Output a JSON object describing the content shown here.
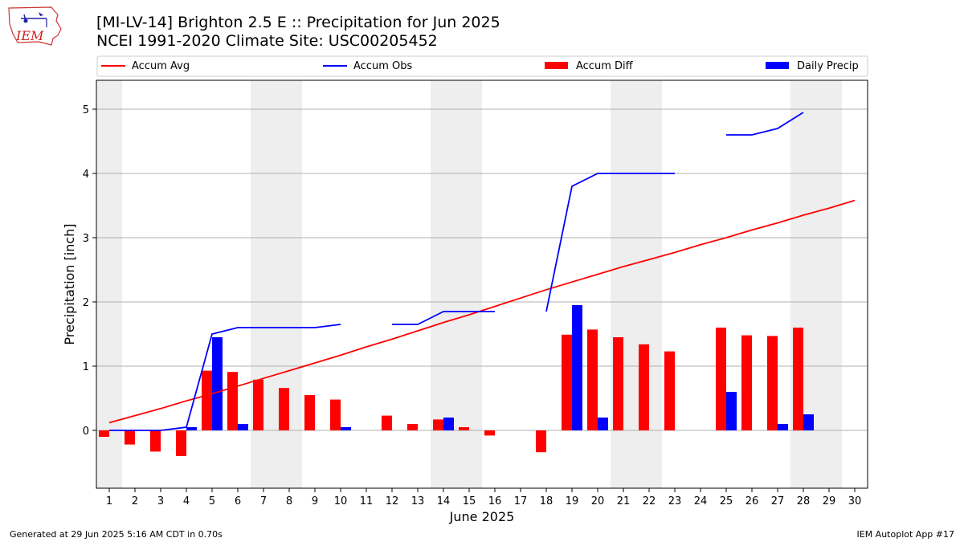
{
  "header": {
    "title": "[MI-LV-14] Brighton 2.5 E :: Precipitation for Jun 2025",
    "subtitle": "NCEI 1991-2020 Climate Site: USC00205452",
    "logo_text": "IEM"
  },
  "footer": {
    "generated": "Generated at 29 Jun 2025 5:16 AM CDT in 0.70s",
    "app": "IEM Autoplot App #17"
  },
  "colors": {
    "avg": "#ff0000",
    "obs": "#0000ff",
    "diff": "#ff0000",
    "daily": "#0000ff",
    "weekend_shade": "#eeeeee",
    "grid": "#b0b0b0"
  },
  "chart_data": {
    "type": "bar",
    "xlabel": "June 2025",
    "ylabel": "Precipitation [inch]",
    "ylim": [
      -0.9,
      5.45
    ],
    "yticks": [
      0,
      1,
      2,
      3,
      4,
      5
    ],
    "grid": true,
    "legend_placement": "top",
    "legend": [
      "Accum Avg",
      "Accum Obs",
      "Accum Diff",
      "Daily Precip"
    ],
    "days": [
      1,
      2,
      3,
      4,
      5,
      6,
      7,
      8,
      9,
      10,
      11,
      12,
      13,
      14,
      15,
      16,
      17,
      18,
      19,
      20,
      21,
      22,
      23,
      24,
      25,
      26,
      27,
      28,
      29,
      30
    ],
    "weekend_days": [
      1,
      7,
      8,
      14,
      15,
      21,
      22,
      28,
      29
    ],
    "series": [
      {
        "name": "Accum Avg",
        "kind": "line",
        "values": [
          0.12,
          0.23,
          0.34,
          0.46,
          0.57,
          0.69,
          0.81,
          0.93,
          1.05,
          1.17,
          1.3,
          1.42,
          1.55,
          1.68,
          1.8,
          1.93,
          2.06,
          2.19,
          2.31,
          2.43,
          2.55,
          2.66,
          2.77,
          2.89,
          3.0,
          3.12,
          3.23,
          3.35,
          3.46,
          3.58
        ]
      },
      {
        "name": "Accum Obs",
        "kind": "line",
        "values": [
          0.0,
          0.0,
          0.0,
          0.05,
          1.5,
          1.6,
          1.6,
          1.6,
          1.6,
          1.65,
          null,
          1.65,
          1.65,
          1.85,
          1.85,
          1.85,
          null,
          1.85,
          3.8,
          4.0,
          4.0,
          4.0,
          4.0,
          null,
          4.6,
          4.6,
          4.7,
          4.95,
          null,
          null
        ]
      },
      {
        "name": "Accum Diff",
        "kind": "bar",
        "values": [
          -0.1,
          -0.22,
          -0.33,
          -0.4,
          0.93,
          0.91,
          0.79,
          0.66,
          0.55,
          0.48,
          null,
          0.23,
          0.1,
          0.17,
          0.05,
          -0.08,
          null,
          -0.34,
          1.49,
          1.57,
          1.45,
          1.34,
          1.23,
          null,
          1.6,
          1.48,
          1.47,
          1.6,
          null,
          null
        ]
      },
      {
        "name": "Daily Precip",
        "kind": "bar",
        "values": [
          0.0,
          0.0,
          0.0,
          0.05,
          1.45,
          0.1,
          0.0,
          0.0,
          0.0,
          0.05,
          null,
          0.0,
          0.0,
          0.2,
          0.0,
          0.0,
          null,
          0.0,
          1.95,
          0.2,
          0.0,
          0.0,
          0.0,
          null,
          0.6,
          0.0,
          0.1,
          0.25,
          null,
          null
        ]
      }
    ]
  }
}
